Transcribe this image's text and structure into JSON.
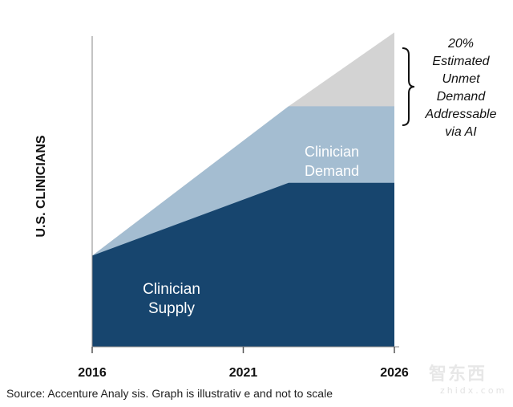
{
  "chart_data": {
    "type": "area",
    "ylabel": "U.S. CLINICIANS",
    "x_ticks": [
      "2016",
      "2021",
      "2026"
    ],
    "series": [
      {
        "name": "Clinician Supply",
        "color": "#17456e",
        "points": [
          [
            2016,
            1.0
          ],
          [
            2022.5,
            1.8
          ],
          [
            2026,
            1.8
          ]
        ]
      },
      {
        "name": "Clinician Demand",
        "color": "#a4bdd1",
        "points": [
          [
            2016,
            1.0
          ],
          [
            2022.5,
            2.64
          ],
          [
            2026,
            2.64
          ]
        ]
      },
      {
        "name": "Unmet Demand",
        "color": "#d3d3d3",
        "points": [
          [
            2016,
            1.0
          ],
          [
            2022.5,
            2.64
          ],
          [
            2026,
            3.45
          ]
        ]
      }
    ],
    "area_labels": {
      "supply": [
        "Clinician",
        "Supply"
      ],
      "demand": [
        "Clinician",
        "Demand"
      ]
    },
    "annotation": {
      "lines": [
        "20%",
        "Estimated",
        "Unmet",
        "Demand",
        "Addressable",
        "via AI"
      ]
    },
    "footer": "Source: Accenture Analy sis. Graph is illustrativ e and not to scale"
  },
  "watermark": {
    "cn": "智东西",
    "en": "zhidx.com"
  }
}
